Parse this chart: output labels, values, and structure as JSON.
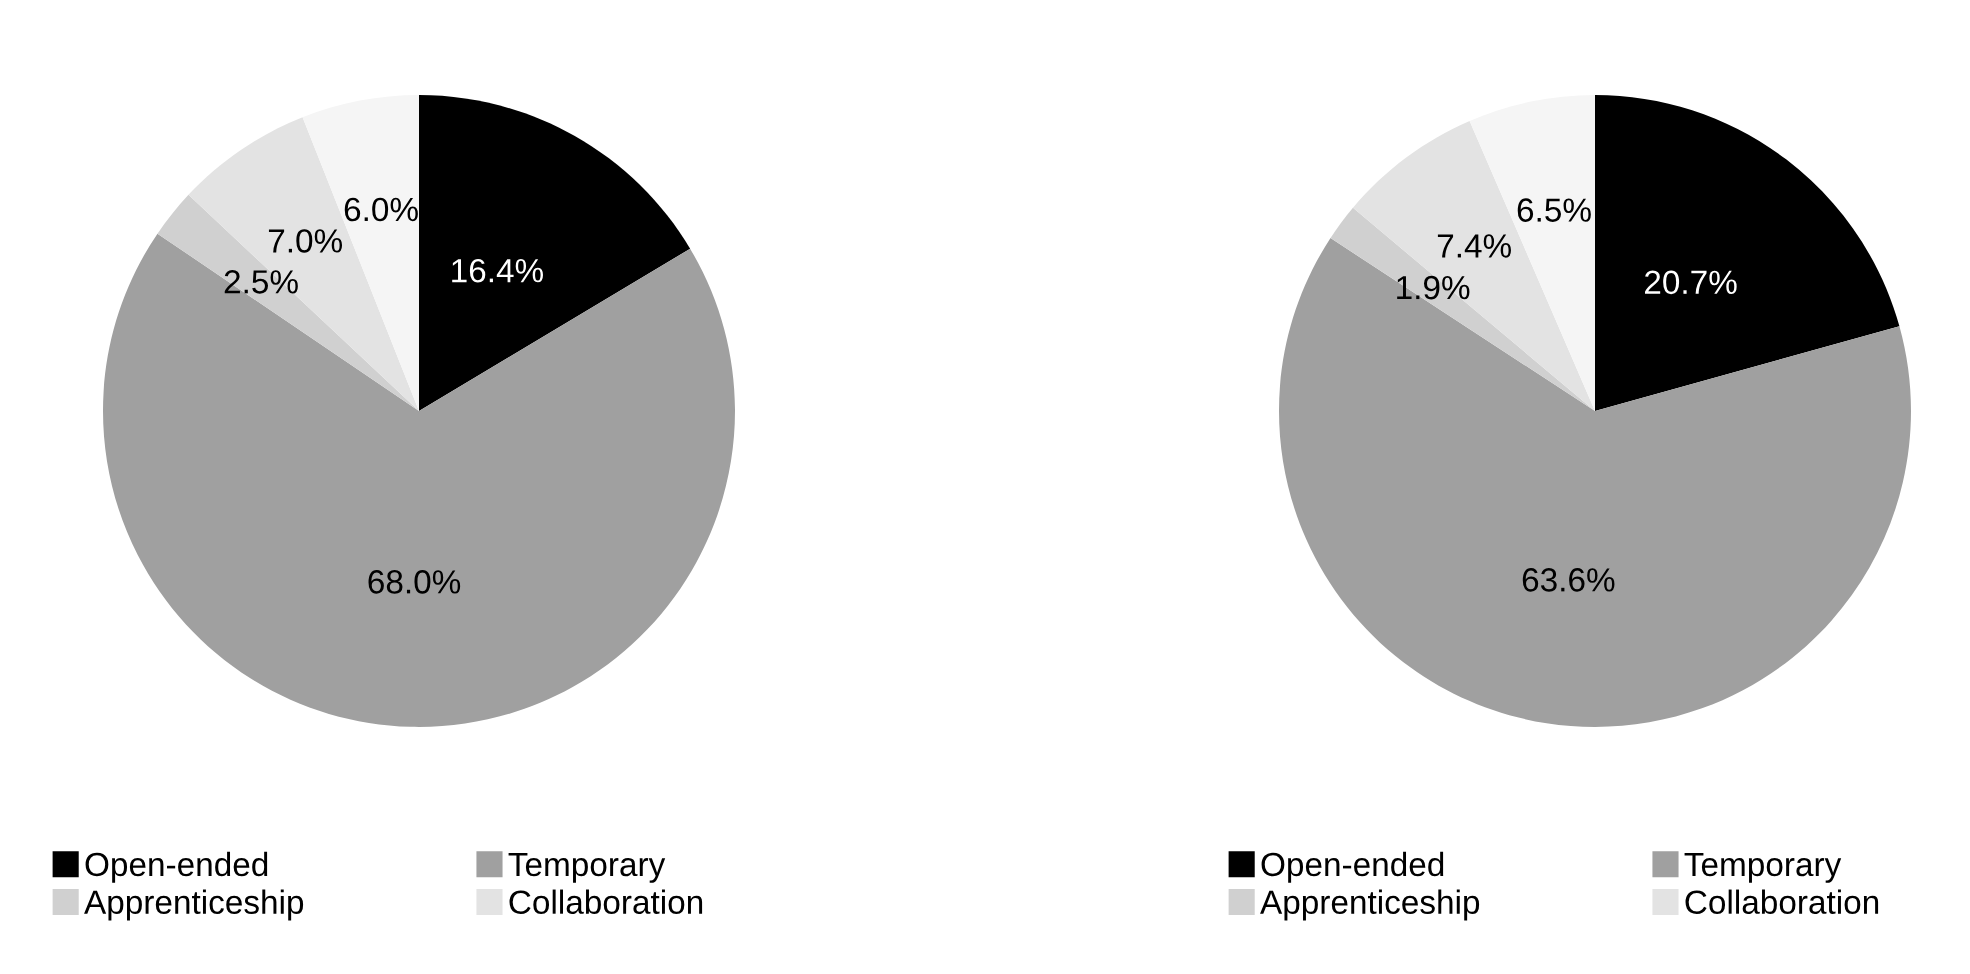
{
  "chart_data": [
    {
      "type": "pie",
      "categories": [
        "Open-ended",
        "Temporary",
        "Apprenticeship",
        "Collaboration",
        null
      ],
      "values": [
        16.4,
        68.0,
        2.5,
        7.0,
        6.0
      ],
      "value_labels": [
        "16.4%",
        "68.0%",
        "2.5%",
        "7.0%",
        "6.0%"
      ],
      "colors": [
        "#000000",
        "#a0a0a0",
        "#d0d0d0",
        "#e3e3e3",
        "#f5f5f5"
      ],
      "legend": "bottom"
    },
    {
      "type": "pie",
      "categories": [
        "Open-ended",
        "Temporary",
        "Apprenticeship",
        "Collaboration",
        null
      ],
      "values": [
        20.7,
        63.6,
        1.9,
        7.4,
        6.5
      ],
      "value_labels": [
        "20.7%",
        "63.6%",
        "1.9%",
        "7.4%",
        "6.5%"
      ],
      "colors": [
        "#000000",
        "#a0a0a0",
        "#d0d0d0",
        "#e3e3e3",
        "#f5f5f5"
      ],
      "legend": "bottom"
    }
  ]
}
